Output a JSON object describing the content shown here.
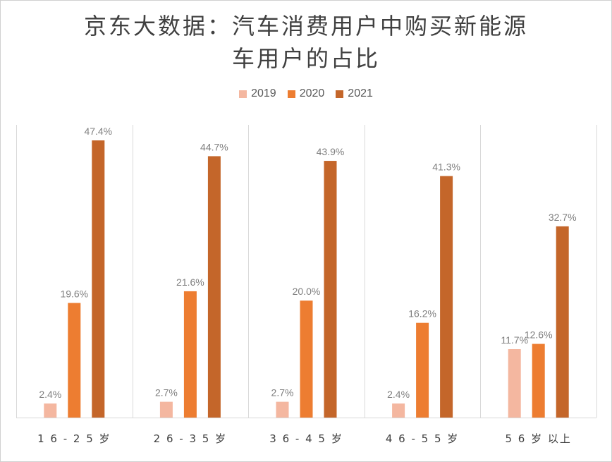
{
  "chart_data": {
    "type": "bar",
    "title": "京东大数据：汽车消费用户中购买新能源车用户的占比",
    "title_lines": [
      "京东大数据：汽车消费用户中购买新能源",
      "车用户的占比"
    ],
    "categories": [
      "16-25岁",
      "26-35岁",
      "36-45岁",
      "46-55岁",
      "56岁以上"
    ],
    "category_labels": [
      "1 6 - 2 5 岁",
      "2 6 - 3 5 岁",
      "3 6 - 4 5 岁",
      "4 6 - 5 5 岁",
      "5 6 岁 以上"
    ],
    "series": [
      {
        "name": "2019",
        "color": "#f4b7a0",
        "values": [
          2.4,
          2.7,
          2.7,
          2.4,
          11.7
        ],
        "labels": [
          "2.4%",
          "2.7%",
          "2.7%",
          "2.4%",
          "11.7%"
        ]
      },
      {
        "name": "2020",
        "color": "#ed7d31",
        "values": [
          19.6,
          21.6,
          20.0,
          16.2,
          12.6
        ],
        "labels": [
          "19.6%",
          "21.6%",
          "20.0%",
          "16.2%",
          "12.6%"
        ]
      },
      {
        "name": "2021",
        "color": "#c4662a",
        "values": [
          47.4,
          44.7,
          43.9,
          41.3,
          32.7
        ],
        "labels": [
          "47.4%",
          "44.7%",
          "43.9%",
          "41.3%",
          "32.7%"
        ]
      }
    ],
    "ylim": [
      0,
      50
    ],
    "unit": "%",
    "legend_position": "top",
    "grid": "vertical category separators"
  }
}
